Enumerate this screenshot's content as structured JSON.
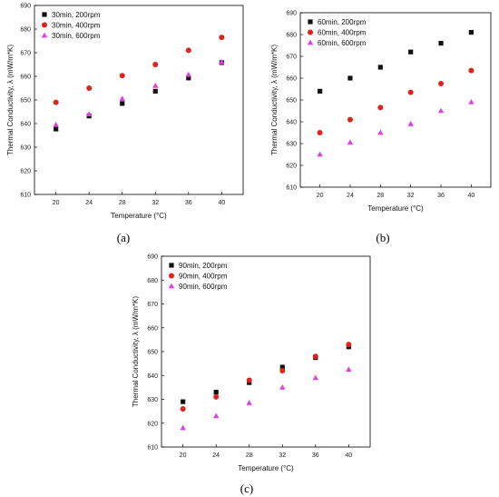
{
  "chart_data": [
    {
      "type": "scatter",
      "panel_label": "(a)",
      "xlabel": "Temperature (°C)",
      "ylabel": "Thermal Conductivity, λ (mW/m*K)",
      "x": [
        20,
        24,
        28,
        32,
        36,
        40
      ],
      "xticks": [
        20,
        24,
        28,
        32,
        36,
        40
      ],
      "ylim": [
        610,
        690
      ],
      "yticks": [
        610,
        620,
        630,
        640,
        650,
        660,
        670,
        680,
        690
      ],
      "legend_position": "top-left",
      "series": [
        {
          "name": "30min, 200rpm",
          "marker": "square",
          "color": "#111111",
          "values": [
            637.7,
            643.2,
            648.5,
            653.7,
            659.3,
            665.8
          ]
        },
        {
          "name": "30min, 400rpm",
          "marker": "circle",
          "color": "#e0221b",
          "values": [
            649.0,
            655.0,
            660.3,
            665.0,
            671.0,
            676.5
          ]
        },
        {
          "name": "30min, 600rpm",
          "marker": "triangle",
          "color": "#e040e0",
          "values": [
            639.5,
            644.0,
            650.5,
            656.0,
            660.7,
            666.0
          ]
        }
      ]
    },
    {
      "type": "scatter",
      "panel_label": "(b)",
      "xlabel": "Temperature (°C)",
      "ylabel": "Thermal Conductivity, λ (mW/m*K)",
      "x": [
        20,
        24,
        28,
        32,
        36,
        40
      ],
      "xticks": [
        20,
        24,
        28,
        32,
        36,
        40
      ],
      "ylim": [
        610,
        690
      ],
      "yticks": [
        610,
        620,
        630,
        640,
        650,
        660,
        670,
        680,
        690
      ],
      "legend_position": "top-left",
      "series": [
        {
          "name": "60min, 200rpm",
          "marker": "square",
          "color": "#111111",
          "values": [
            654.0,
            660.0,
            665.0,
            672.0,
            676.0,
            681.0
          ]
        },
        {
          "name": "60min, 400rpm",
          "marker": "circle",
          "color": "#e0221b",
          "values": [
            635.0,
            641.0,
            646.5,
            653.5,
            657.5,
            663.5
          ]
        },
        {
          "name": "60min, 600rpm",
          "marker": "triangle",
          "color": "#e040e0",
          "values": [
            625.0,
            630.5,
            635.0,
            639.0,
            645.0,
            649.0
          ]
        }
      ]
    },
    {
      "type": "scatter",
      "panel_label": "(c)",
      "xlabel": "Temperature (°C)",
      "ylabel": "Thermal Conductivity, λ (mW/m*K)",
      "x": [
        20,
        24,
        28,
        32,
        36,
        40
      ],
      "xticks": [
        20,
        24,
        28,
        32,
        36,
        40
      ],
      "ylim": [
        610,
        690
      ],
      "yticks": [
        610,
        620,
        630,
        640,
        650,
        660,
        670,
        680,
        690
      ],
      "legend_position": "top-left",
      "series": [
        {
          "name": "90min, 200rpm",
          "marker": "square",
          "color": "#111111",
          "values": [
            629.0,
            633.0,
            637.0,
            643.5,
            647.5,
            652.0
          ]
        },
        {
          "name": "90min, 400rpm",
          "marker": "circle",
          "color": "#e0221b",
          "values": [
            626.0,
            631.0,
            638.0,
            642.0,
            648.0,
            653.0
          ]
        },
        {
          "name": "90min, 600rpm",
          "marker": "triangle",
          "color": "#e040e0",
          "values": [
            618.0,
            623.0,
            628.5,
            635.0,
            639.0,
            642.5
          ]
        }
      ]
    }
  ]
}
